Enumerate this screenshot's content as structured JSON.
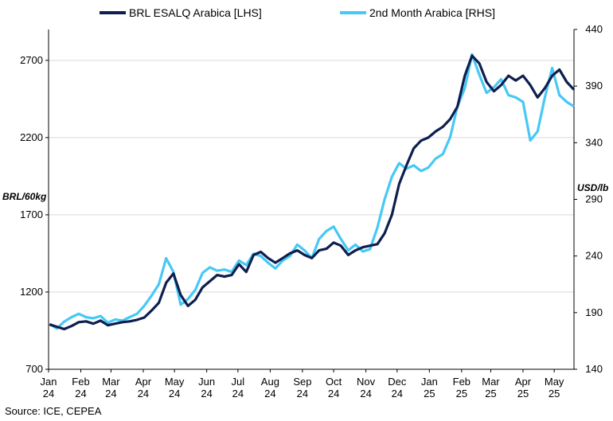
{
  "colors": {
    "series_lhs": "#0d1f4e",
    "series_rhs": "#47c8f5",
    "grid": "#d9d9d9",
    "axis": "#000000"
  },
  "source_text": "Source: ICE, CEPEA",
  "chart_data": {
    "type": "line",
    "title": "",
    "legend_position": "top",
    "grid": true,
    "y_left": {
      "label": "BRL/60kg",
      "ylim": [
        700,
        2900
      ],
      "ticks": [
        700,
        1200,
        1700,
        2200,
        2700
      ]
    },
    "y_right": {
      "label": "USD/lb",
      "ylim": [
        140,
        440
      ],
      "ticks": [
        140,
        190,
        240,
        290,
        340,
        390,
        440
      ]
    },
    "x_tick_labels": [
      [
        "Jan",
        "24"
      ],
      [
        "Feb",
        "24"
      ],
      [
        "Mar",
        "24"
      ],
      [
        "Apr",
        "24"
      ],
      [
        "May",
        "24"
      ],
      [
        "Jun",
        "24"
      ],
      [
        "Jul",
        "24"
      ],
      [
        "Aug",
        "24"
      ],
      [
        "Sep",
        "24"
      ],
      [
        "Oct",
        "24"
      ],
      [
        "Nov",
        "24"
      ],
      [
        "Dec",
        "24"
      ],
      [
        "Jan",
        "25"
      ],
      [
        "Feb",
        "25"
      ],
      [
        "Mar",
        "25"
      ],
      [
        "Apr",
        "25"
      ],
      [
        "May",
        "25"
      ]
    ],
    "x_range": [
      "2024-01-01",
      "2025-05-20"
    ],
    "series": [
      {
        "name": "BRL ESALQ Arabica [LHS]",
        "axis": "left",
        "points": [
          [
            "2024-01-02",
            990
          ],
          [
            "2024-01-09",
            975
          ],
          [
            "2024-01-16",
            960
          ],
          [
            "2024-01-23",
            980
          ],
          [
            "2024-01-30",
            1005
          ],
          [
            "2024-02-06",
            1010
          ],
          [
            "2024-02-13",
            995
          ],
          [
            "2024-02-20",
            1015
          ],
          [
            "2024-02-27",
            985
          ],
          [
            "2024-03-05",
            995
          ],
          [
            "2024-03-12",
            1005
          ],
          [
            "2024-03-19",
            1010
          ],
          [
            "2024-03-26",
            1020
          ],
          [
            "2024-04-02",
            1035
          ],
          [
            "2024-04-09",
            1080
          ],
          [
            "2024-04-16",
            1130
          ],
          [
            "2024-04-23",
            1260
          ],
          [
            "2024-04-30",
            1320
          ],
          [
            "2024-05-07",
            1180
          ],
          [
            "2024-05-14",
            1110
          ],
          [
            "2024-05-21",
            1150
          ],
          [
            "2024-05-28",
            1230
          ],
          [
            "2024-06-04",
            1270
          ],
          [
            "2024-06-11",
            1310
          ],
          [
            "2024-06-18",
            1300
          ],
          [
            "2024-06-25",
            1310
          ],
          [
            "2024-07-02",
            1380
          ],
          [
            "2024-07-09",
            1330
          ],
          [
            "2024-07-16",
            1440
          ],
          [
            "2024-07-23",
            1460
          ],
          [
            "2024-07-30",
            1420
          ],
          [
            "2024-08-06",
            1390
          ],
          [
            "2024-08-13",
            1420
          ],
          [
            "2024-08-20",
            1450
          ],
          [
            "2024-08-27",
            1470
          ],
          [
            "2024-09-03",
            1440
          ],
          [
            "2024-09-10",
            1420
          ],
          [
            "2024-09-17",
            1470
          ],
          [
            "2024-09-24",
            1480
          ],
          [
            "2024-10-01",
            1520
          ],
          [
            "2024-10-08",
            1500
          ],
          [
            "2024-10-15",
            1440
          ],
          [
            "2024-10-22",
            1470
          ],
          [
            "2024-10-29",
            1490
          ],
          [
            "2024-11-05",
            1500
          ],
          [
            "2024-11-12",
            1510
          ],
          [
            "2024-11-19",
            1580
          ],
          [
            "2024-11-26",
            1700
          ],
          [
            "2024-12-03",
            1900
          ],
          [
            "2024-12-10",
            2020
          ],
          [
            "2024-12-17",
            2130
          ],
          [
            "2024-12-24",
            2180
          ],
          [
            "2024-12-31",
            2200
          ],
          [
            "2025-01-07",
            2240
          ],
          [
            "2025-01-14",
            2270
          ],
          [
            "2025-01-21",
            2320
          ],
          [
            "2025-01-28",
            2400
          ],
          [
            "2025-02-04",
            2600
          ],
          [
            "2025-02-11",
            2730
          ],
          [
            "2025-02-18",
            2680
          ],
          [
            "2025-02-25",
            2560
          ],
          [
            "2025-03-04",
            2500
          ],
          [
            "2025-03-11",
            2540
          ],
          [
            "2025-03-18",
            2600
          ],
          [
            "2025-03-25",
            2570
          ],
          [
            "2025-04-01",
            2600
          ],
          [
            "2025-04-08",
            2540
          ],
          [
            "2025-04-15",
            2460
          ],
          [
            "2025-04-22",
            2520
          ],
          [
            "2025-04-29",
            2600
          ],
          [
            "2025-05-06",
            2640
          ],
          [
            "2025-05-13",
            2560
          ],
          [
            "2025-05-20",
            2510
          ]
        ]
      },
      {
        "name": "2nd Month Arabica [RHS]",
        "axis": "right",
        "points": [
          [
            "2024-01-02",
            180
          ],
          [
            "2024-01-09",
            176
          ],
          [
            "2024-01-16",
            182
          ],
          [
            "2024-01-23",
            186
          ],
          [
            "2024-01-30",
            189
          ],
          [
            "2024-02-06",
            186
          ],
          [
            "2024-02-13",
            185
          ],
          [
            "2024-02-20",
            187
          ],
          [
            "2024-02-27",
            181
          ],
          [
            "2024-03-05",
            184
          ],
          [
            "2024-03-12",
            183
          ],
          [
            "2024-03-19",
            186
          ],
          [
            "2024-03-26",
            189
          ],
          [
            "2024-04-02",
            196
          ],
          [
            "2024-04-09",
            205
          ],
          [
            "2024-04-16",
            215
          ],
          [
            "2024-04-23",
            238
          ],
          [
            "2024-04-30",
            226
          ],
          [
            "2024-05-07",
            197
          ],
          [
            "2024-05-14",
            202
          ],
          [
            "2024-05-21",
            210
          ],
          [
            "2024-05-28",
            225
          ],
          [
            "2024-06-04",
            230
          ],
          [
            "2024-06-11",
            227
          ],
          [
            "2024-06-18",
            228
          ],
          [
            "2024-06-25",
            226
          ],
          [
            "2024-07-02",
            236
          ],
          [
            "2024-07-09",
            232
          ],
          [
            "2024-07-16",
            242
          ],
          [
            "2024-07-23",
            240
          ],
          [
            "2024-07-30",
            234
          ],
          [
            "2024-08-06",
            229
          ],
          [
            "2024-08-13",
            236
          ],
          [
            "2024-08-20",
            240
          ],
          [
            "2024-08-27",
            250
          ],
          [
            "2024-09-03",
            245
          ],
          [
            "2024-09-10",
            238
          ],
          [
            "2024-09-17",
            255
          ],
          [
            "2024-09-24",
            262
          ],
          [
            "2024-10-01",
            266
          ],
          [
            "2024-10-08",
            255
          ],
          [
            "2024-10-15",
            245
          ],
          [
            "2024-10-22",
            250
          ],
          [
            "2024-10-29",
            244
          ],
          [
            "2024-11-05",
            246
          ],
          [
            "2024-11-12",
            265
          ],
          [
            "2024-11-19",
            290
          ],
          [
            "2024-11-26",
            310
          ],
          [
            "2024-12-03",
            322
          ],
          [
            "2024-12-10",
            317
          ],
          [
            "2024-12-17",
            320
          ],
          [
            "2024-12-24",
            315
          ],
          [
            "2024-12-31",
            318
          ],
          [
            "2025-01-07",
            326
          ],
          [
            "2025-01-14",
            330
          ],
          [
            "2025-01-21",
            345
          ],
          [
            "2025-01-28",
            372
          ],
          [
            "2025-02-04",
            388
          ],
          [
            "2025-02-11",
            418
          ],
          [
            "2025-02-18",
            400
          ],
          [
            "2025-02-25",
            384
          ],
          [
            "2025-03-04",
            389
          ],
          [
            "2025-03-11",
            396
          ],
          [
            "2025-03-18",
            382
          ],
          [
            "2025-03-25",
            380
          ],
          [
            "2025-04-01",
            376
          ],
          [
            "2025-04-08",
            342
          ],
          [
            "2025-04-15",
            350
          ],
          [
            "2025-04-22",
            380
          ],
          [
            "2025-04-29",
            406
          ],
          [
            "2025-05-06",
            382
          ],
          [
            "2025-05-13",
            376
          ],
          [
            "2025-05-20",
            372
          ]
        ]
      }
    ]
  }
}
